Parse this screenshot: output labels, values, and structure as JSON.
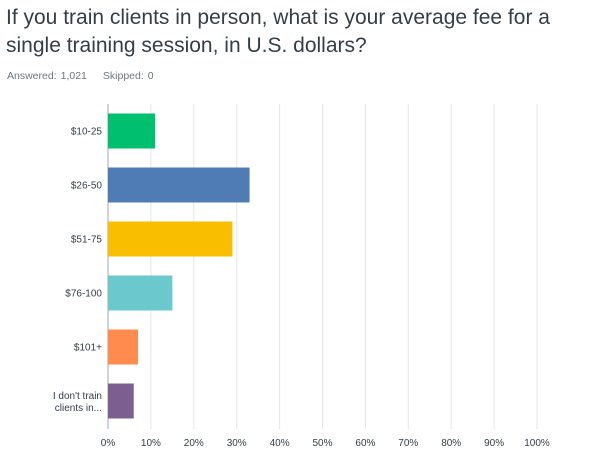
{
  "question": {
    "title": "If you train clients in person, what is your average fee for a single training session, in U.S. dollars?"
  },
  "stats": {
    "answered_label": "Answered:",
    "answered_value": "1,021",
    "skipped_label": "Skipped:",
    "skipped_value": "0"
  },
  "chart_data": {
    "type": "bar",
    "orientation": "horizontal",
    "categories": [
      "$10-25",
      "$26-50",
      "$51-75",
      "$76-100",
      "$101+",
      "I don't train clients in..."
    ],
    "values": [
      11,
      33,
      29,
      15,
      7,
      6
    ],
    "value_unit": "%",
    "xlim": [
      0,
      100
    ],
    "x_ticks": [
      "0%",
      "10%",
      "20%",
      "30%",
      "40%",
      "50%",
      "60%",
      "70%",
      "80%",
      "90%",
      "100%"
    ],
    "grid": true,
    "colors": [
      "#00bf6f",
      "#507cb6",
      "#f9be00",
      "#6bc8cd",
      "#ff8b4f",
      "#7d5e90"
    ],
    "gridline_color": "#e3e5e6",
    "axis_color": "#a0a8ad"
  }
}
